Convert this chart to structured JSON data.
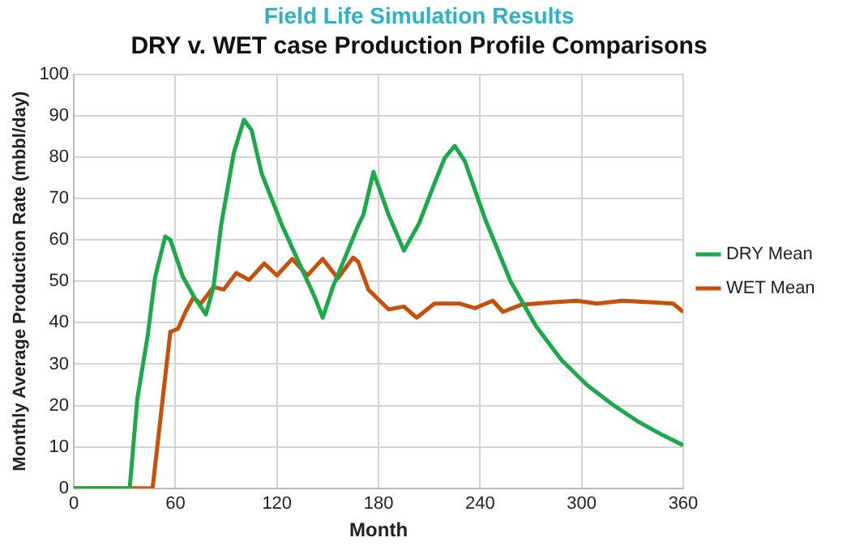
{
  "chart_data": {
    "type": "line",
    "title": "Field Life Simulation Results",
    "subtitle": "DRY v. WET case Production Profile Comparisons",
    "xlabel": "Month",
    "ylabel": "Monthly Average Production Rate (mbbl/day)",
    "xlim": [
      0,
      360
    ],
    "xticks": [
      0,
      60,
      120,
      180,
      240,
      300,
      360
    ],
    "ylim": [
      0,
      100
    ],
    "yticks": [
      0,
      10,
      20,
      30,
      40,
      50,
      60,
      70,
      80,
      90,
      100
    ],
    "grid": true,
    "legend": "right",
    "marker": "none",
    "line_style": "solid",
    "series": [
      {
        "name": "DRY Mean",
        "color": "#1aaa4a",
        "x": [
          0,
          33,
          37.5,
          43.5,
          48,
          54,
          57,
          64.5,
          70.5,
          78,
          82.5,
          87,
          94.5,
          100.5,
          105,
          111,
          123,
          135,
          142.5,
          147,
          153,
          160.5,
          168,
          171,
          177,
          186,
          195,
          204,
          213,
          219,
          225,
          231,
          243,
          258,
          273,
          288,
          303,
          318,
          333,
          348,
          360
        ],
        "values": [
          0,
          0,
          21.6,
          36.5,
          51,
          60.8,
          60,
          51,
          46.6,
          42,
          48.6,
          63.5,
          81,
          89,
          86.5,
          76,
          63.5,
          52.7,
          46,
          41.2,
          48.6,
          56,
          63.5,
          66,
          76.4,
          66,
          57.4,
          64,
          73.6,
          79.7,
          82.7,
          79,
          65,
          50,
          39.2,
          31,
          25,
          20.3,
          16.2,
          12.8,
          10.4
        ]
      },
      {
        "name": "WET Mean",
        "color": "#c8500a",
        "x": [
          0,
          46.5,
          52.5,
          57,
          61.5,
          66,
          70.5,
          75,
          82.5,
          88.5,
          96,
          103.5,
          112.5,
          120,
          129,
          138,
          147,
          156,
          165,
          168,
          174,
          186,
          195,
          202.5,
          213,
          228,
          237,
          247.5,
          253.5,
          264,
          282,
          297,
          309,
          324,
          342,
          354,
          360
        ],
        "values": [
          0,
          0,
          21.6,
          37.8,
          38.5,
          42.6,
          46,
          44.6,
          48.6,
          48,
          52,
          50.3,
          54.3,
          51.4,
          55.4,
          51.4,
          55.4,
          50.7,
          55.7,
          54.7,
          48,
          43.2,
          43.9,
          41.2,
          44.6,
          44.6,
          43.5,
          45.3,
          42.6,
          44.3,
          44.9,
          45.3,
          44.6,
          45.3,
          44.9,
          44.6,
          42.6
        ]
      }
    ]
  }
}
